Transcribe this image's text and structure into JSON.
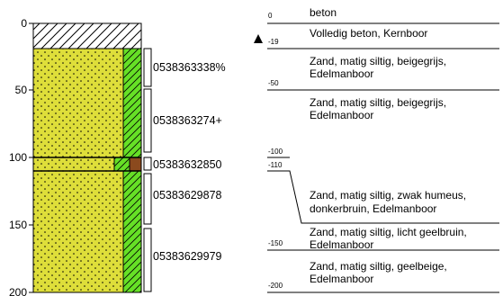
{
  "depth_axis": {
    "ticks": [
      "0",
      "50",
      "100",
      "150",
      "200"
    ]
  },
  "samples": [
    {
      "label": "0538363338%"
    },
    {
      "label": "0538363274+"
    },
    {
      "label": "05383632850"
    },
    {
      "label": "05383629878"
    },
    {
      "label": "05383629979"
    }
  ],
  "layer_marks": [
    "0",
    "-19",
    "-50",
    "-100",
    "-110",
    "-150",
    "-200"
  ],
  "descriptions": [
    {
      "line1": "beton",
      "line2": ""
    },
    {
      "line1": "Volledig beton, Kernboor",
      "line2": ""
    },
    {
      "line1": "Zand, matig siltig, beigegrijs,",
      "line2": "Edelmanboor"
    },
    {
      "line1": "Zand, matig siltig, beigegrijs,",
      "line2": "Edelmanboor"
    },
    {
      "line1": "Zand, matig siltig, zwak humeus,",
      "line2": "donkerbruin, Edelmanboor"
    },
    {
      "line1": "Zand, matig siltig, licht geelbruin,",
      "line2": "Edelmanboor"
    },
    {
      "line1": "Zand, matig siltig, geelbeige,",
      "line2": "Edelmanboor"
    }
  ],
  "colors": {
    "concrete_fill": "#ffffff",
    "sand_fill": "#dede3a",
    "silt_fill": "#66e026",
    "humus_fill": "#8b4a1e",
    "line": "#000000"
  },
  "icons": {
    "groundwater_marker": "triangle-up-icon"
  }
}
